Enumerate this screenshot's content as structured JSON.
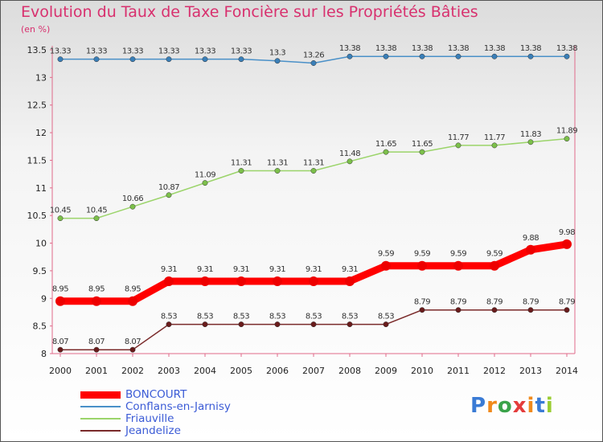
{
  "header": {
    "title": "Evolution du Taux de Taxe Foncière sur les Propriétés Bâties",
    "unit": "(en %)"
  },
  "logo": {
    "letters": [
      "P",
      "r",
      "o",
      "x",
      "i",
      "t",
      "i"
    ],
    "colors": [
      "#3a7bd5",
      "#f08a1c",
      "#3ba34a",
      "#e43c3c",
      "#f08a1c",
      "#3a7bd5",
      "#9acd32"
    ]
  },
  "chart_data": {
    "type": "line",
    "title": "Evolution du Taux de Taxe Foncière sur les Propriétés Bâties",
    "ylabel": "(en %)",
    "xlabel": "",
    "ylim": [
      8,
      13.5
    ],
    "yticks": [
      "8",
      "8.5",
      "9",
      "9.5",
      "10",
      "10.5",
      "11",
      "11.5",
      "12",
      "12.5",
      "13",
      "13.5"
    ],
    "categories": [
      "2000",
      "2001",
      "2002",
      "2003",
      "2004",
      "2005",
      "2006",
      "2007",
      "2008",
      "2009",
      "2010",
      "2011",
      "2012",
      "2013",
      "2014"
    ],
    "series": [
      {
        "name": "Conflans-en-Jarnisy",
        "color": "#4a90c8",
        "dot": "#3a7fb8",
        "values": [
          13.33,
          13.33,
          13.33,
          13.33,
          13.33,
          13.33,
          13.3,
          13.26,
          13.38,
          13.38,
          13.38,
          13.38,
          13.38,
          13.38,
          13.38
        ]
      },
      {
        "name": "Friauville",
        "color": "#9bd46a",
        "dot": "#7cc04a",
        "values": [
          10.45,
          10.45,
          10.66,
          10.87,
          11.09,
          11.31,
          11.31,
          11.31,
          11.48,
          11.65,
          11.65,
          11.77,
          11.77,
          11.83,
          11.89
        ]
      },
      {
        "name": "Jeandelize",
        "color": "#7a2a2a",
        "dot": "#6a1c1c",
        "values": [
          8.07,
          8.07,
          8.07,
          8.53,
          8.53,
          8.53,
          8.53,
          8.53,
          8.53,
          8.53,
          8.79,
          8.79,
          8.79,
          8.79,
          8.79
        ]
      },
      {
        "name": "BONCOURT",
        "color": "#ff0000",
        "dot": "#ee0000",
        "values": [
          8.95,
          8.95,
          8.95,
          9.31,
          9.31,
          9.31,
          9.31,
          9.31,
          9.31,
          9.59,
          9.59,
          9.59,
          9.59,
          9.88,
          9.98
        ]
      }
    ],
    "legend_order": [
      "BONCOURT",
      "Conflans-en-Jarnisy",
      "Friauville",
      "Jeandelize"
    ]
  }
}
